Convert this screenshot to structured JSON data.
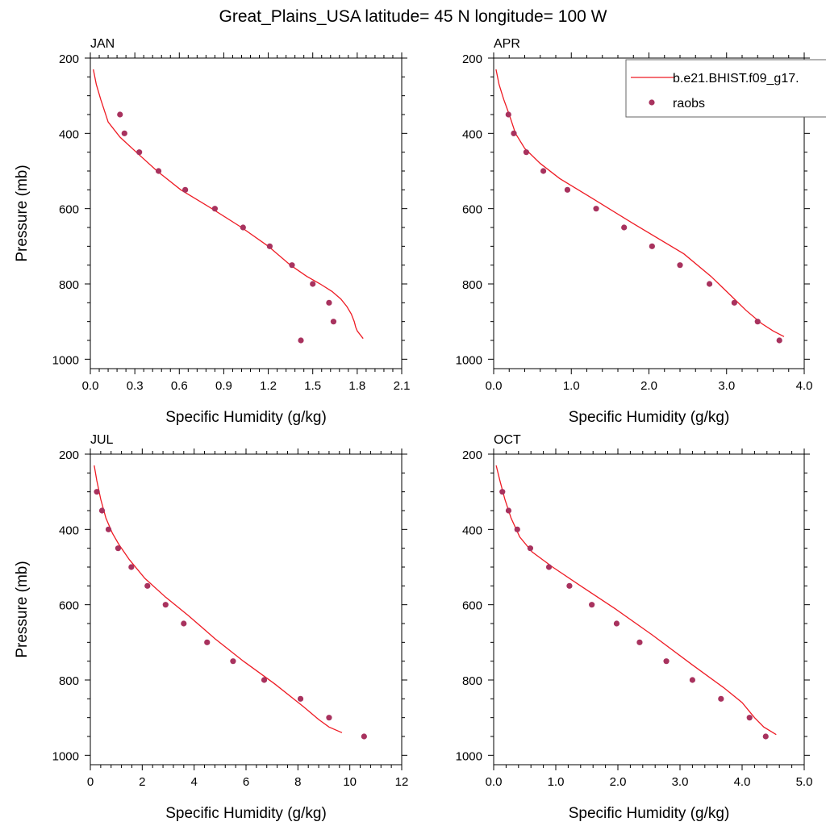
{
  "title": "Great_Plains_USA  latitude= 45 N longitude= 100 W",
  "colors": {
    "model": "#ee1b24",
    "obs": "#a8325e",
    "axis": "#000000"
  },
  "legend": {
    "model_label": "b.e21.BHIST.f09_g17.",
    "obs_label": "raobs",
    "position": "top-right"
  },
  "chart_data": [
    {
      "type": "line",
      "panel": "JAN",
      "title": "JAN",
      "xlabel": "Specific Humidity (g/kg)",
      "ylabel": "Pressure (mb)",
      "xlim": [
        0,
        2.1
      ],
      "ylim": [
        1025,
        200
      ],
      "xticks": [
        0,
        0.3,
        0.6,
        0.9,
        1.2,
        1.5,
        1.8,
        2.1
      ],
      "xtick_labels": [
        "0.0",
        "0.3",
        "0.6",
        "0.9",
        "1.2",
        "1.5",
        "1.8",
        "2.1"
      ],
      "yticks": [
        200,
        400,
        600,
        800,
        1000
      ],
      "ytick_labels": [
        "200",
        "400",
        "600",
        "800",
        "1000"
      ],
      "model": {
        "x": [
          0.02,
          0.04,
          0.07,
          0.12,
          0.2,
          0.31,
          0.45,
          0.61,
          0.82,
          1.02,
          1.2,
          1.35,
          1.46,
          1.55,
          1.63,
          1.69,
          1.73,
          1.76,
          1.78,
          1.79,
          1.8,
          1.84
        ],
        "y": [
          230,
          270,
          310,
          370,
          410,
          450,
          500,
          550,
          600,
          650,
          700,
          750,
          780,
          800,
          820,
          840,
          860,
          880,
          900,
          915,
          925,
          945
        ]
      },
      "raobs": {
        "x": [
          0.2,
          0.23,
          0.33,
          0.46,
          0.64,
          0.84,
          1.03,
          1.21,
          1.36,
          1.5,
          1.61,
          1.64,
          1.42
        ],
        "y": [
          350,
          400,
          450,
          500,
          550,
          600,
          650,
          700,
          750,
          800,
          850,
          900,
          950
        ]
      }
    },
    {
      "type": "line",
      "panel": "APR",
      "title": "APR",
      "xlabel": "Specific Humidity (g/kg)",
      "ylabel": "",
      "xlim": [
        0,
        4.0
      ],
      "ylim": [
        1025,
        200
      ],
      "xticks": [
        0,
        1,
        2,
        3,
        4
      ],
      "xtick_labels": [
        "0.0",
        "1.0",
        "2.0",
        "3.0",
        "4.0"
      ],
      "yticks": [
        200,
        400,
        600,
        800,
        1000
      ],
      "ytick_labels": [
        "200",
        "400",
        "600",
        "800",
        "1000"
      ],
      "model": {
        "x": [
          0.03,
          0.07,
          0.13,
          0.2,
          0.28,
          0.4,
          0.6,
          0.85,
          1.25,
          1.8,
          2.45,
          2.8,
          3.05,
          3.25,
          3.45,
          3.6,
          3.74
        ],
        "y": [
          230,
          270,
          310,
          350,
          400,
          440,
          480,
          520,
          570,
          640,
          720,
          780,
          830,
          870,
          905,
          925,
          940
        ]
      },
      "raobs": {
        "x": [
          0.19,
          0.26,
          0.42,
          0.64,
          0.95,
          1.32,
          1.68,
          2.04,
          2.4,
          2.78,
          3.1,
          3.4,
          3.68
        ],
        "y": [
          350,
          400,
          450,
          500,
          550,
          600,
          650,
          700,
          750,
          800,
          850,
          900,
          950
        ]
      }
    },
    {
      "type": "line",
      "panel": "JUL",
      "title": "JUL",
      "xlabel": "Specific Humidity (g/kg)",
      "ylabel": "Pressure (mb)",
      "xlim": [
        0,
        12
      ],
      "ylim": [
        1025,
        200
      ],
      "xticks": [
        0,
        2,
        4,
        6,
        8,
        10,
        12
      ],
      "xtick_labels": [
        "0",
        "2",
        "4",
        "6",
        "8",
        "10",
        "12"
      ],
      "yticks": [
        200,
        400,
        600,
        800,
        1000
      ],
      "ytick_labels": [
        "200",
        "400",
        "600",
        "800",
        "1000"
      ],
      "model": {
        "x": [
          0.15,
          0.25,
          0.4,
          0.6,
          0.85,
          1.1,
          1.5,
          2.1,
          2.9,
          3.8,
          4.8,
          5.9,
          7.1,
          8.2,
          8.8,
          9.2,
          9.7
        ],
        "y": [
          230,
          270,
          320,
          370,
          410,
          440,
          480,
          530,
          580,
          630,
          690,
          750,
          810,
          870,
          905,
          925,
          940
        ]
      },
      "raobs": {
        "x": [
          0.25,
          0.45,
          0.7,
          1.07,
          1.58,
          2.2,
          2.9,
          3.6,
          4.5,
          5.5,
          6.7,
          8.1,
          9.2,
          10.55
        ],
        "y": [
          300,
          350,
          400,
          450,
          500,
          550,
          600,
          650,
          700,
          750,
          800,
          850,
          900,
          950
        ]
      }
    },
    {
      "type": "line",
      "panel": "OCT",
      "title": "OCT",
      "xlabel": "Specific Humidity (g/kg)",
      "ylabel": "",
      "xlim": [
        0,
        5.0
      ],
      "ylim": [
        1025,
        200
      ],
      "xticks": [
        0,
        1,
        2,
        3,
        4,
        5
      ],
      "xtick_labels": [
        "0.0",
        "1.0",
        "2.0",
        "3.0",
        "4.0",
        "5.0"
      ],
      "yticks": [
        200,
        400,
        600,
        800,
        1000
      ],
      "ytick_labels": [
        "200",
        "400",
        "600",
        "800",
        "1000"
      ],
      "model": {
        "x": [
          0.04,
          0.1,
          0.18,
          0.28,
          0.42,
          0.62,
          0.95,
          1.4,
          1.95,
          2.55,
          3.2,
          3.7,
          4.0,
          4.2,
          4.35,
          4.55
        ],
        "y": [
          230,
          270,
          320,
          370,
          420,
          460,
          500,
          550,
          610,
          680,
          760,
          820,
          860,
          900,
          925,
          945
        ]
      },
      "raobs": {
        "x": [
          0.14,
          0.24,
          0.38,
          0.59,
          0.89,
          1.22,
          1.58,
          1.98,
          2.35,
          2.78,
          3.2,
          3.66,
          4.12,
          4.38
        ],
        "y": [
          300,
          350,
          400,
          450,
          500,
          550,
          600,
          650,
          700,
          750,
          800,
          850,
          900,
          950
        ]
      }
    }
  ]
}
